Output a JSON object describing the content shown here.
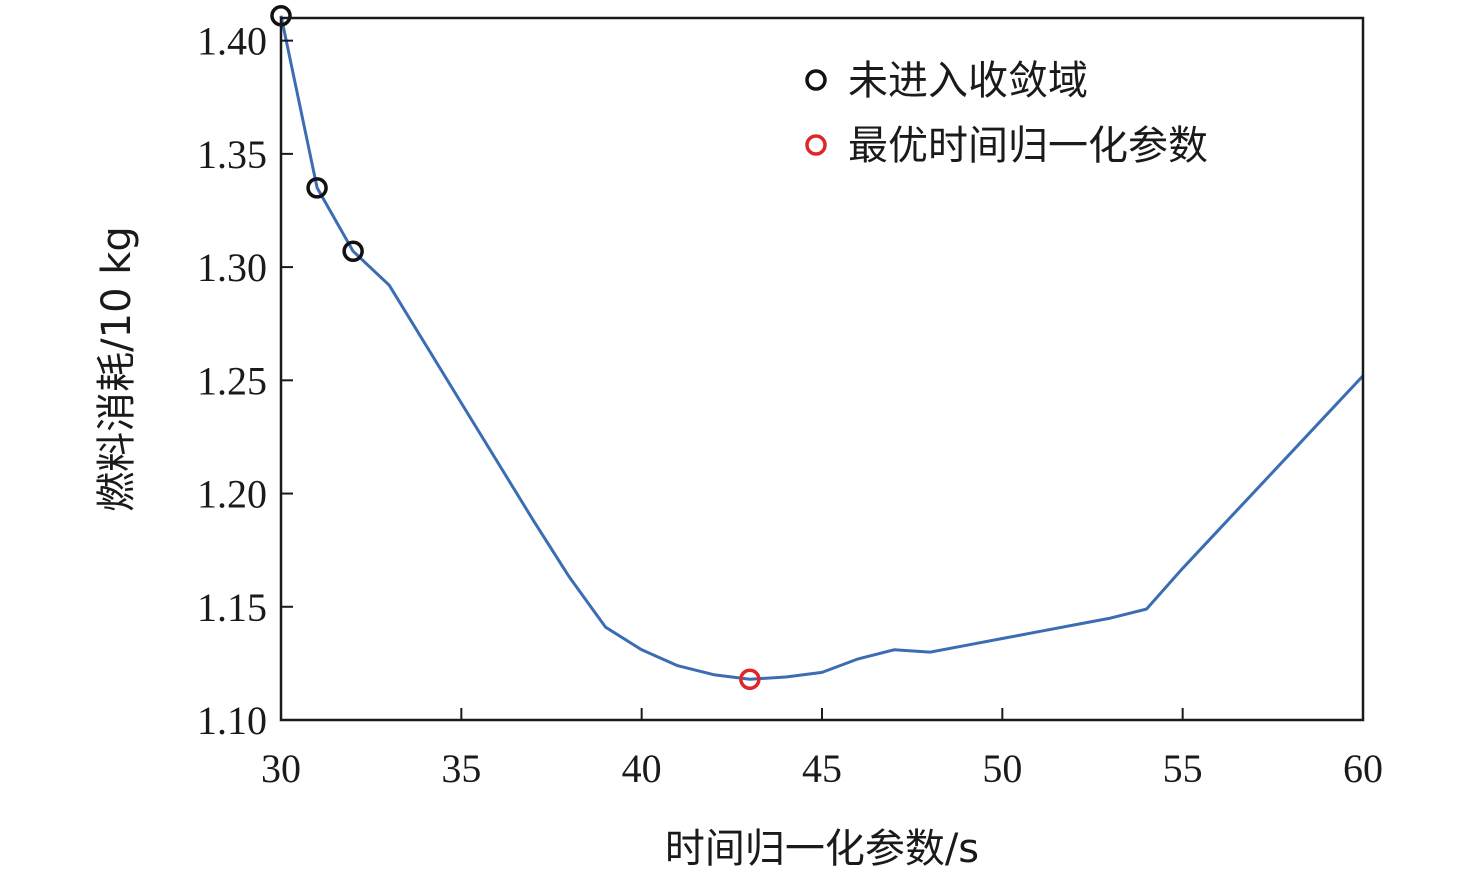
{
  "chart_data": {
    "type": "line",
    "title": "",
    "xlabel": "时间归一化参数/s",
    "ylabel": "燃料消耗/10 kg",
    "xlim": [
      30,
      60
    ],
    "ylim": [
      1.1,
      1.41
    ],
    "xticks": [
      30,
      35,
      40,
      45,
      50,
      55,
      60
    ],
    "yticks": [
      1.1,
      1.15,
      1.2,
      1.25,
      1.3,
      1.35,
      1.4
    ],
    "xtick_labels": [
      "30",
      "35",
      "40",
      "45",
      "50",
      "55",
      "60"
    ],
    "ytick_labels": [
      "1.10",
      "1.15",
      "1.20",
      "1.25",
      "1.30",
      "1.35",
      "1.40"
    ],
    "grid": false,
    "legend_position": "top-right",
    "series": [
      {
        "type": "line",
        "color": "#3b6db3",
        "x": [
          30,
          31,
          32,
          33,
          34,
          35,
          36,
          37,
          38,
          39,
          40,
          41,
          42,
          43,
          44,
          45,
          46,
          47,
          48,
          49,
          50,
          51,
          52,
          53,
          54,
          55,
          56,
          57,
          58,
          59,
          60
        ],
        "y": [
          1.411,
          1.335,
          1.307,
          1.292,
          1.266,
          1.24,
          1.214,
          1.188,
          1.163,
          1.141,
          1.131,
          1.124,
          1.12,
          1.118,
          1.119,
          1.121,
          1.127,
          1.131,
          1.13,
          1.133,
          1.136,
          1.139,
          1.142,
          1.145,
          1.149,
          1.167,
          1.184,
          1.201,
          1.218,
          1.235,
          1.252
        ]
      },
      {
        "type": "scatter",
        "name": "未进入收敛域",
        "color": "#111111",
        "x": [
          30,
          31,
          32
        ],
        "y": [
          1.411,
          1.335,
          1.307
        ]
      },
      {
        "type": "scatter",
        "name": "最优时间归一化参数",
        "color": "#e0262b",
        "x": [
          43
        ],
        "y": [
          1.118
        ]
      }
    ]
  }
}
